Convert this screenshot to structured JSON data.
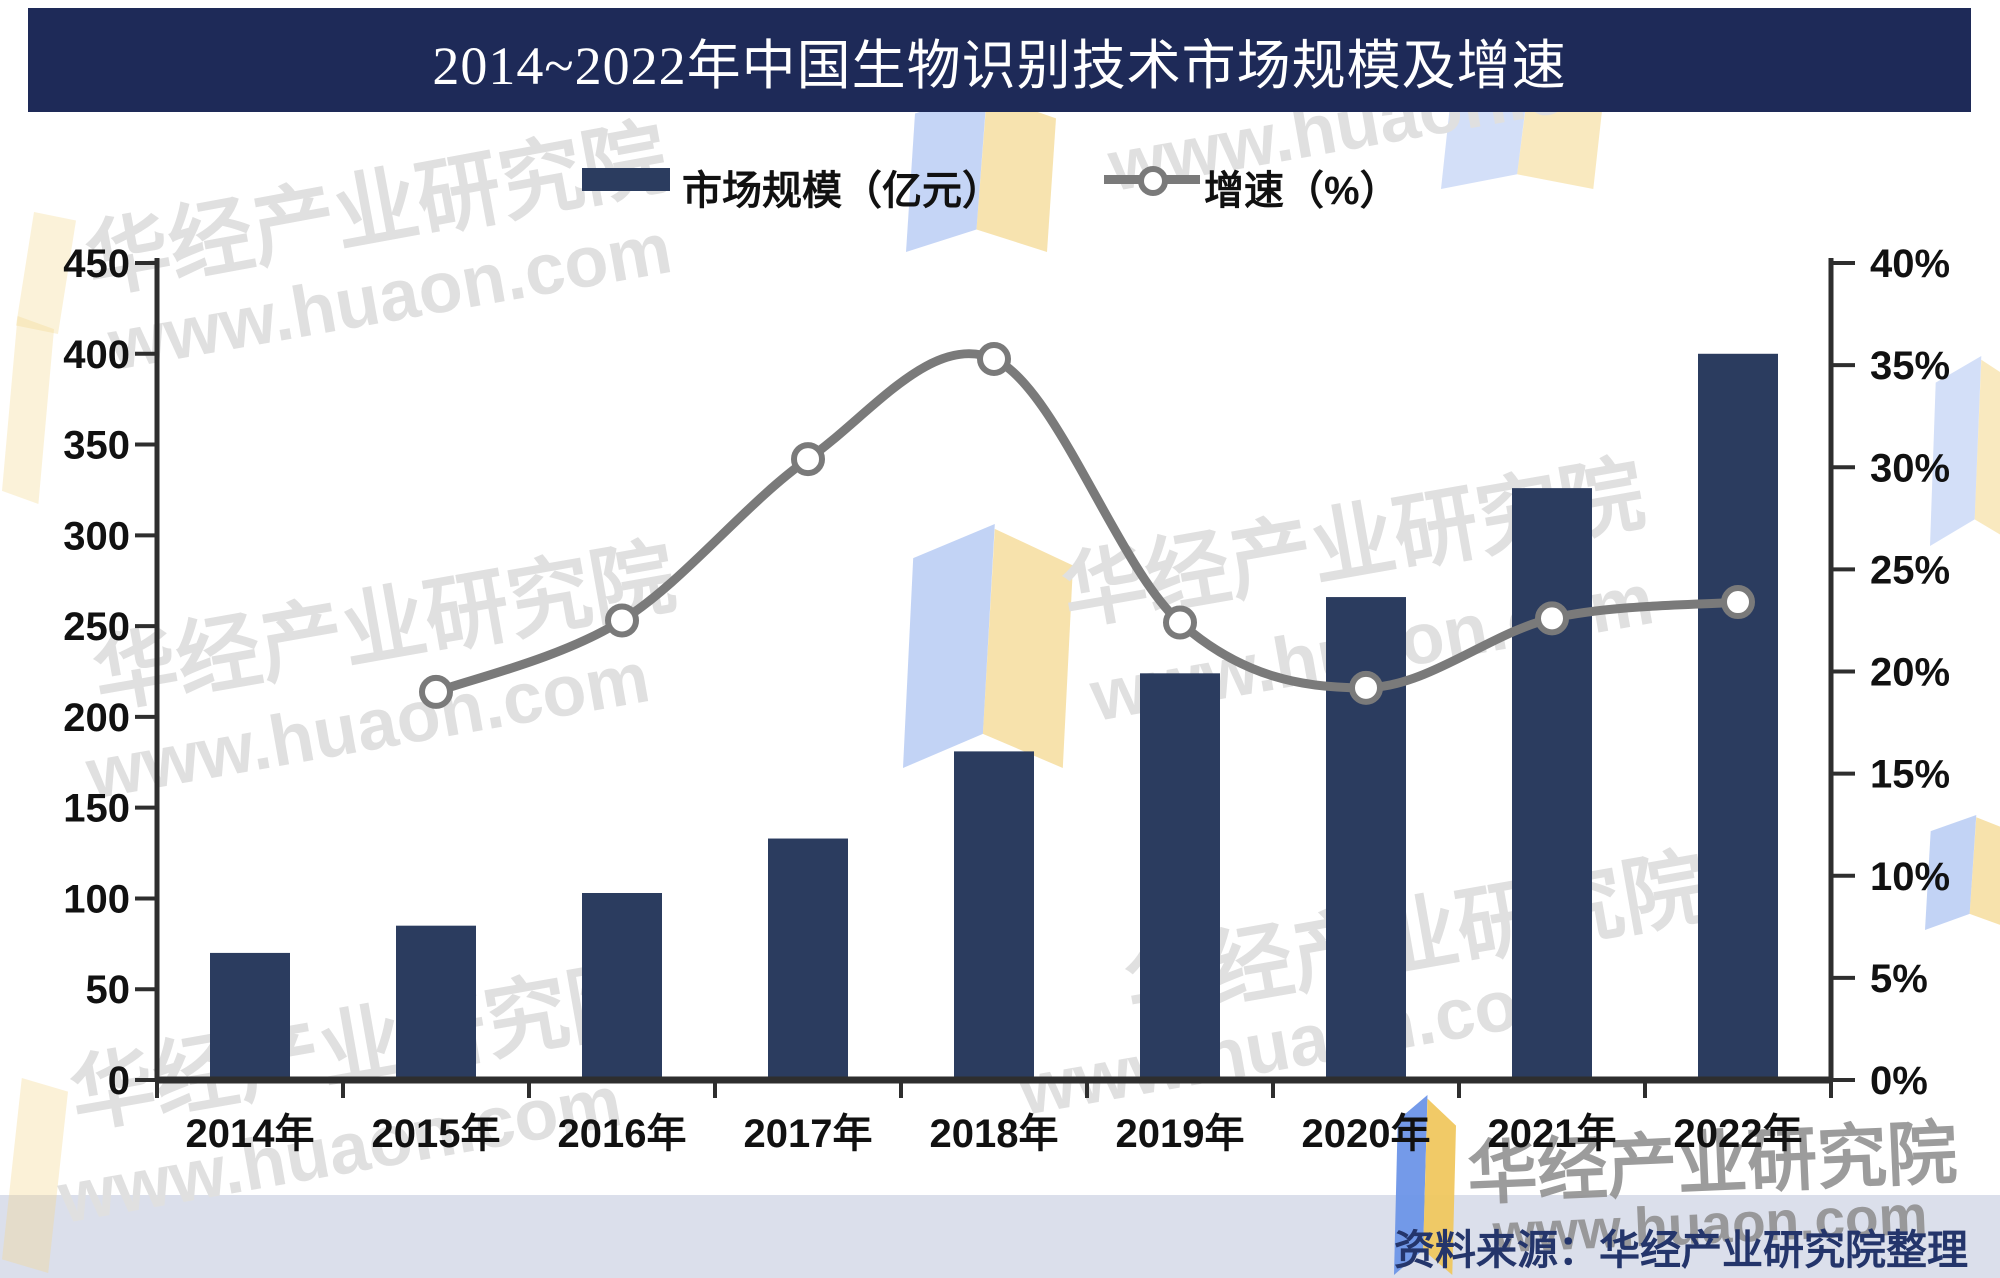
{
  "title": {
    "text": "2014~2022年中国生物识别技术市场规模及增速"
  },
  "legend": {
    "bar_label": "市场规模（亿元）",
    "line_label": "增速（%）"
  },
  "chart_data": {
    "type": "bar+line",
    "categories": [
      "2014年",
      "2015年",
      "2016年",
      "2017年",
      "2018年",
      "2019年",
      "2020年",
      "2021年",
      "2022年"
    ],
    "series": [
      {
        "name": "市场规模（亿元）",
        "type": "bar",
        "axis": "left",
        "color": "#2b3c5f",
        "values": [
          70,
          85,
          103,
          133,
          181,
          224,
          266,
          326,
          400
        ]
      },
      {
        "name": "增速（%）",
        "type": "line",
        "axis": "right",
        "color": "#7a7a7a",
        "values": [
          null,
          19.0,
          22.5,
          30.4,
          35.3,
          22.4,
          19.2,
          22.6,
          23.4
        ]
      }
    ],
    "left_axis": {
      "min": 0,
      "max": 450,
      "step": 50
    },
    "right_axis": {
      "min": 0,
      "max": 40,
      "step": 5,
      "unit": "%"
    },
    "grid": false,
    "legend_position": "top"
  },
  "source": {
    "text": "资料来源：华经产业研究院整理"
  },
  "watermark": {
    "line1": "华经产业研究院",
    "line2": "www.huaon.com"
  }
}
